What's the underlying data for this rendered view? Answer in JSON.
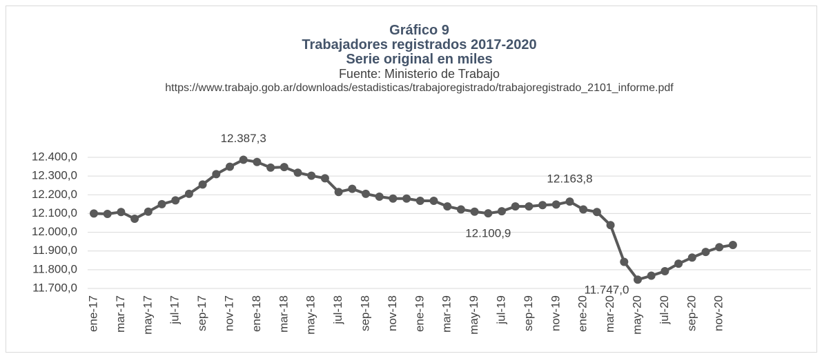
{
  "chart_data": {
    "type": "line",
    "title": [
      "Gráfico 9",
      "Trabajadores registrados 2017-2020",
      "Serie original en miles"
    ],
    "subtitle": "Fuente: Ministerio de Trabajo",
    "source": "https://www.trabajo.gob.ar/downloads/estadisticas/trabajoregistrado/trabajoregistrado_2101_informe.pdf",
    "categories": [
      "ene-17",
      null,
      "mar-17",
      null,
      "may-17",
      null,
      "jul-17",
      null,
      "sep-17",
      null,
      "nov-17",
      null,
      "ene-18",
      null,
      "mar-18",
      null,
      "may-18",
      null,
      "jul-18",
      null,
      "sep-18",
      null,
      "nov-18",
      null,
      "ene-19",
      null,
      "mar-19",
      null,
      "may-19",
      null,
      "jul-19",
      null,
      "sep-19",
      null,
      "nov-19",
      null,
      "ene-20",
      null,
      "mar-20",
      null,
      "may-20",
      null,
      "jul-20",
      null,
      "sep-20",
      null,
      "nov-20",
      null
    ],
    "series": [
      {
        "name": "Trabajadores registrados",
        "color": "#595959",
        "values": [
          12100,
          12098,
          12108,
          12072,
          12110,
          12150,
          12170,
          12205,
          12255,
          12310,
          12350,
          12387.3,
          12375,
          12345,
          12348,
          12318,
          12302,
          12288,
          12215,
          12232,
          12205,
          12190,
          12180,
          12180,
          12168,
          12168,
          12138,
          12122,
          12110,
          12100.9,
          12112,
          12138,
          12138,
          12145,
          12148,
          12163.8,
          12122,
          12108,
          12038,
          11842,
          11747.0,
          11768,
          11792,
          11832,
          11865,
          11895,
          11920,
          11932
        ],
        "value_labels": [
          null,
          null,
          null,
          null,
          null,
          null,
          null,
          null,
          null,
          null,
          null,
          "12.387,3",
          null,
          null,
          null,
          null,
          null,
          null,
          null,
          null,
          null,
          null,
          null,
          null,
          null,
          null,
          null,
          null,
          null,
          "12.100,9",
          null,
          null,
          null,
          null,
          null,
          "12.163,8",
          null,
          null,
          null,
          null,
          "11.747,0",
          null,
          null,
          null,
          null,
          null,
          null,
          null
        ]
      }
    ],
    "ylim": [
      11700,
      12400
    ],
    "yticks": [
      {
        "value": 11700,
        "label": "11.700,0"
      },
      {
        "value": 11800,
        "label": "11.800,0"
      },
      {
        "value": 11900,
        "label": "11.900,0"
      },
      {
        "value": 12000,
        "label": "12.000,0"
      },
      {
        "value": 12100,
        "label": "12.100,0"
      },
      {
        "value": 12200,
        "label": "12.200,0"
      },
      {
        "value": 12300,
        "label": "12.300,0"
      },
      {
        "value": 12400,
        "label": "12.400,0"
      }
    ],
    "grid": true
  }
}
